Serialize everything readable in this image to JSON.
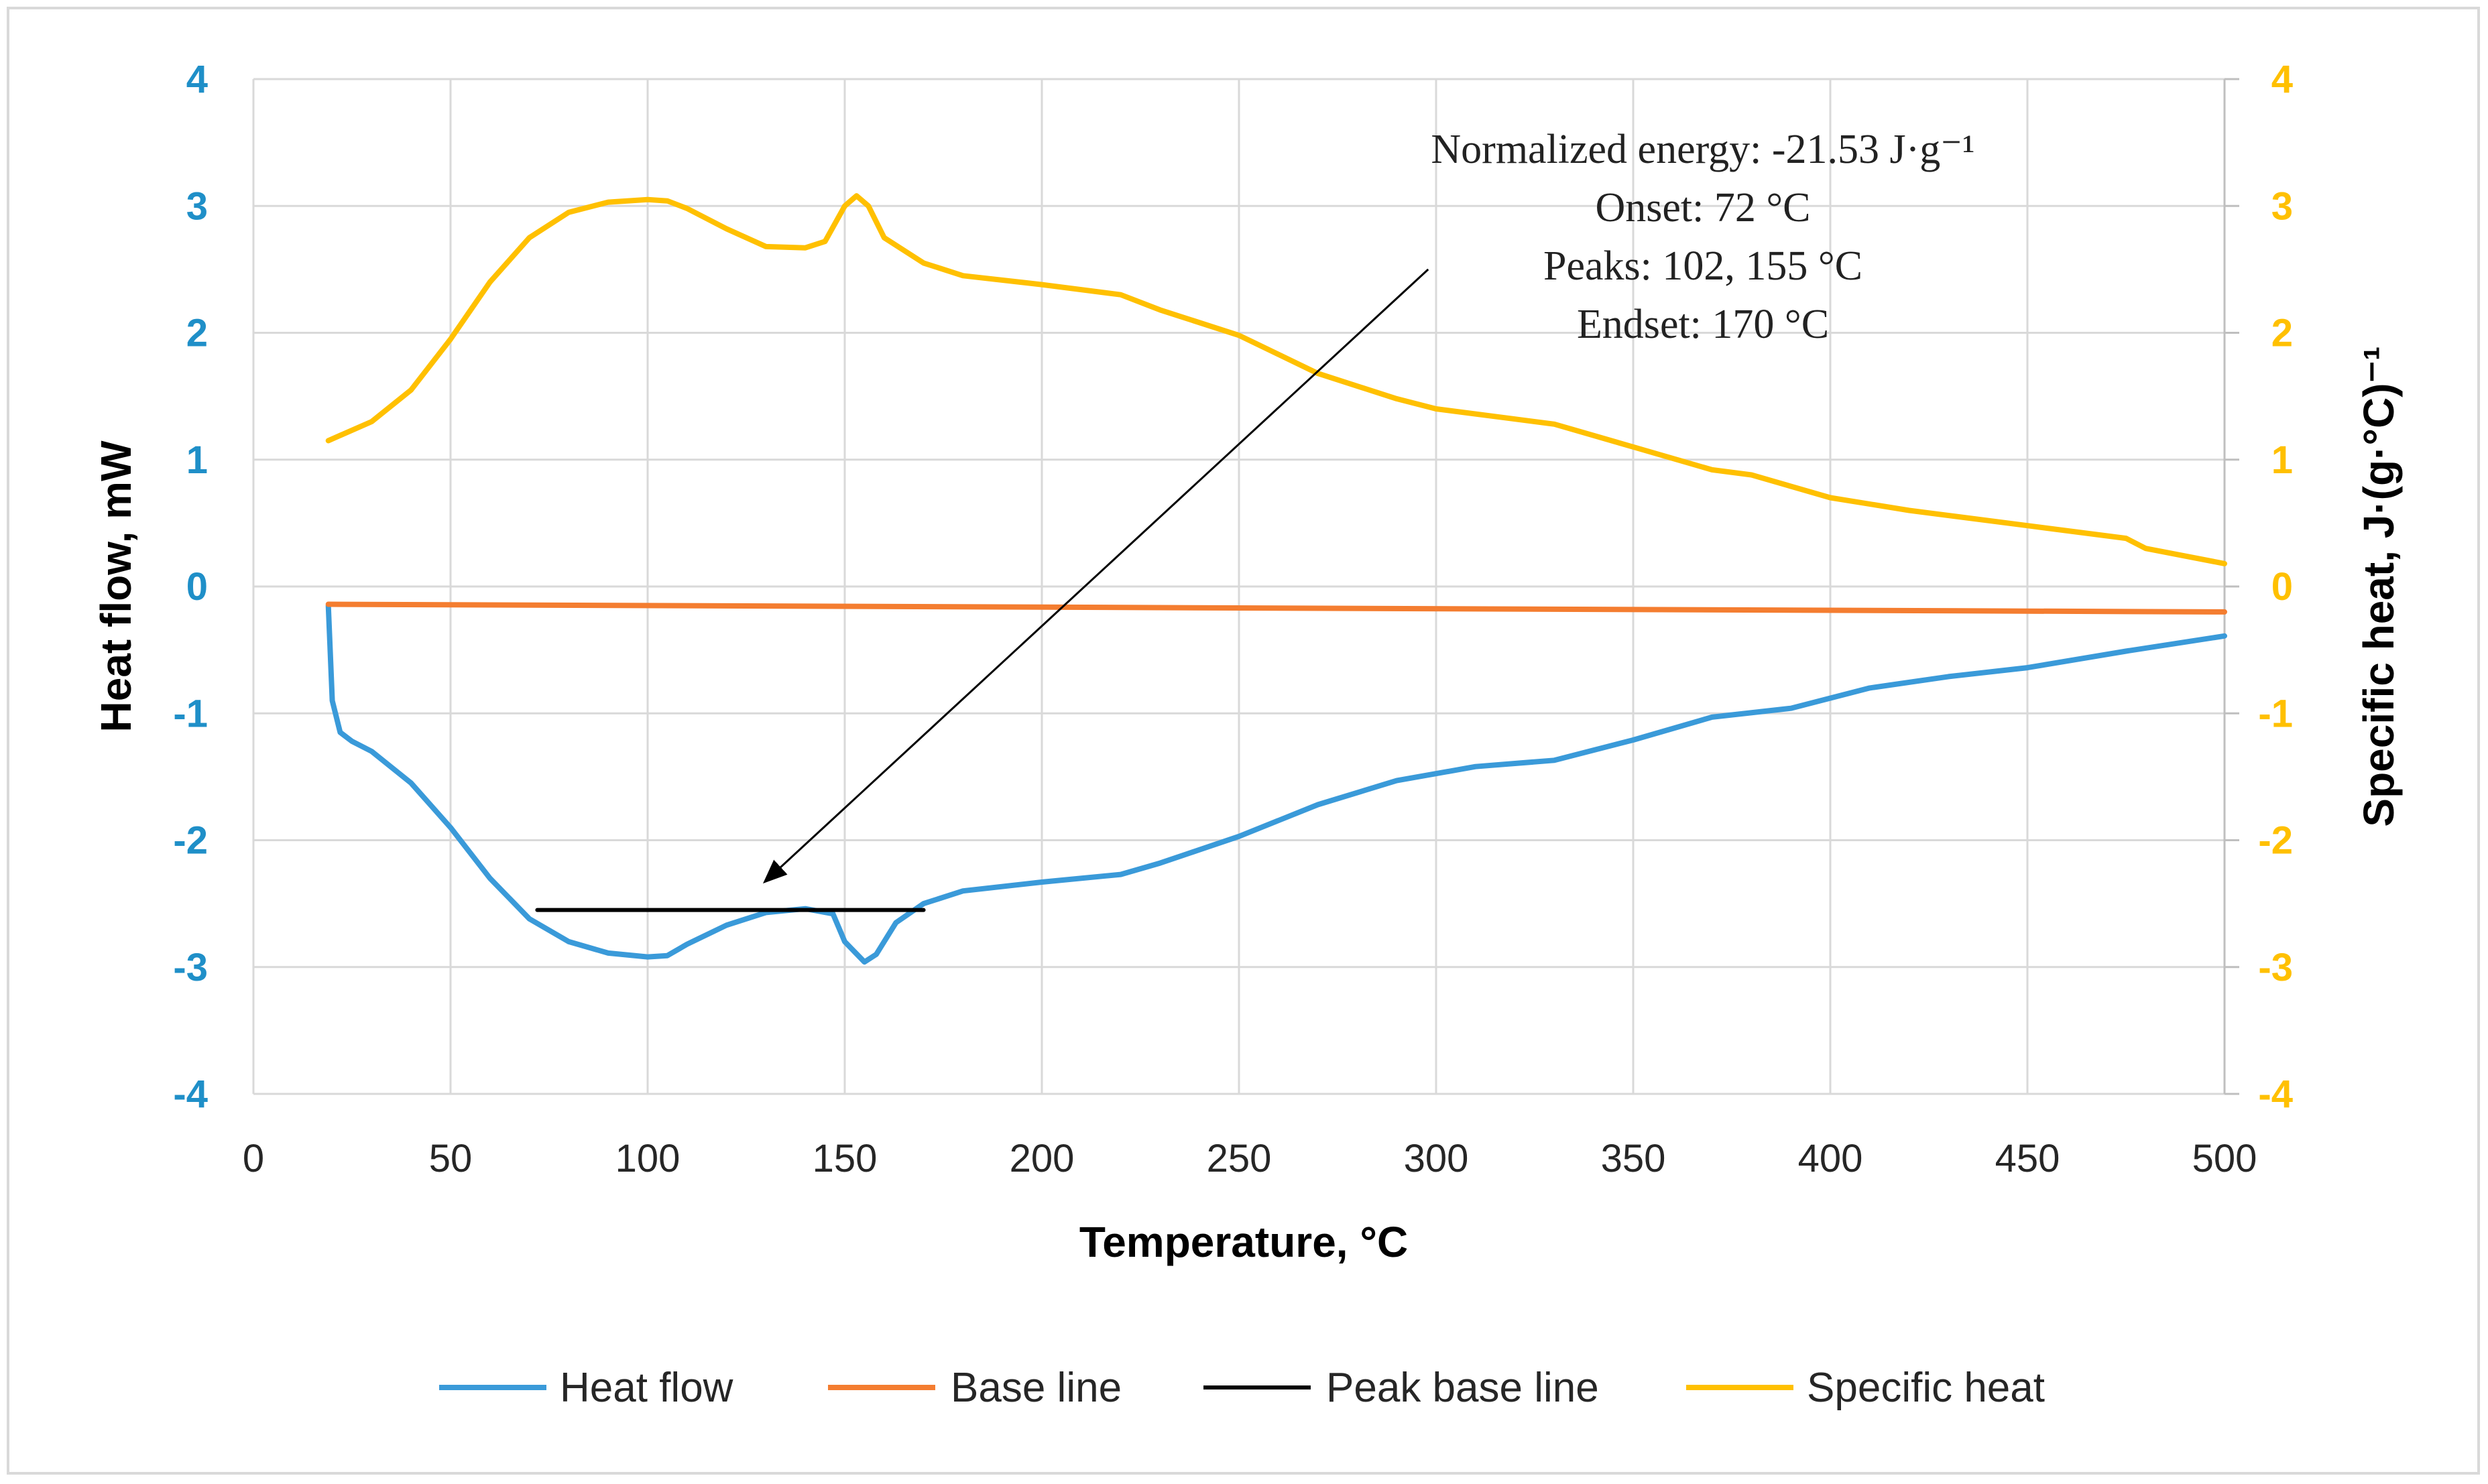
{
  "chart_data": {
    "type": "line",
    "title": "",
    "xlabel": "Temperature, °C",
    "ylabel_left": "Heat flow, mW",
    "ylabel_right": "Specific heat, J·(g·°C)⁻¹",
    "xlim": [
      0,
      500
    ],
    "ylim_left": [
      -4,
      4
    ],
    "ylim_right": [
      -4,
      4
    ],
    "x_ticks": [
      "0",
      "50",
      "100",
      "150",
      "200",
      "250",
      "300",
      "350",
      "400",
      "450",
      "500"
    ],
    "y_ticks_left": [
      "4",
      "3",
      "2",
      "1",
      "0",
      "-1",
      "-2",
      "-3",
      "-4"
    ],
    "y_ticks_right": [
      "4",
      "3",
      "2",
      "1",
      "0",
      "-1",
      "-2",
      "-3",
      "-4"
    ],
    "grid": true,
    "legend_position": "bottom",
    "colors": {
      "heat_flow": "#3a9ad9",
      "base_line": "#f47d30",
      "peak_base_line": "#000000",
      "specific_heat": "#ffc000",
      "left_axis_text": "#1f8fc8",
      "right_axis_text": "#ffc000",
      "grid": "#d9d9d9"
    },
    "series": [
      {
        "name": "Heat flow",
        "axis": "left",
        "x": [
          19,
          20,
          22,
          25,
          30,
          40,
          50,
          60,
          70,
          80,
          90,
          100,
          105,
          110,
          120,
          130,
          140,
          147,
          150,
          155,
          158,
          163,
          170,
          180,
          200,
          220,
          230,
          250,
          270,
          290,
          310,
          330,
          350,
          370,
          390,
          410,
          430,
          450,
          475,
          500
        ],
        "y": [
          -0.15,
          -0.9,
          -1.15,
          -1.22,
          -1.3,
          -1.55,
          -1.9,
          -2.3,
          -2.62,
          -2.8,
          -2.89,
          -2.92,
          -2.91,
          -2.82,
          -2.67,
          -2.57,
          -2.54,
          -2.58,
          -2.8,
          -2.96,
          -2.9,
          -2.65,
          -2.5,
          -2.4,
          -2.33,
          -2.27,
          -2.18,
          -1.97,
          -1.72,
          -1.53,
          -1.42,
          -1.37,
          -1.21,
          -1.03,
          -0.96,
          -0.8,
          -0.71,
          -0.64,
          -0.51,
          -0.39
        ]
      },
      {
        "name": "Base line",
        "axis": "left",
        "x": [
          19,
          500
        ],
        "y": [
          -0.14,
          -0.2
        ]
      },
      {
        "name": "Peak base line",
        "axis": "left",
        "x": [
          72,
          170
        ],
        "y": [
          -2.55,
          -2.55
        ]
      },
      {
        "name": "Specific heat",
        "axis": "right",
        "x": [
          19,
          30,
          40,
          50,
          60,
          70,
          80,
          90,
          100,
          105,
          110,
          120,
          130,
          140,
          145,
          150,
          153,
          156,
          160,
          170,
          180,
          200,
          220,
          230,
          250,
          270,
          290,
          300,
          320,
          330,
          350,
          370,
          380,
          400,
          420,
          450,
          475,
          480,
          500
        ],
        "y": [
          1.15,
          1.3,
          1.55,
          1.95,
          2.4,
          2.75,
          2.95,
          3.03,
          3.05,
          3.04,
          2.98,
          2.82,
          2.68,
          2.67,
          2.72,
          3.0,
          3.08,
          3.0,
          2.75,
          2.55,
          2.45,
          2.38,
          2.3,
          2.18,
          1.98,
          1.68,
          1.48,
          1.4,
          1.32,
          1.28,
          1.1,
          0.92,
          0.88,
          0.7,
          0.6,
          0.48,
          0.38,
          0.3,
          0.18
        ]
      }
    ],
    "annotation": {
      "lines": [
        "Normalized energy: -21.53 J·g⁻¹",
        "Onset: 72 °C",
        "Peaks: 102, 155 °C",
        "Endset: 170 °C"
      ],
      "arrow_from": [
        298,
        2.5
      ],
      "arrow_to": [
        130,
        -2.32
      ]
    },
    "legend": [
      "Heat flow",
      "Base line",
      "Peak base line",
      "Specific heat"
    ]
  }
}
